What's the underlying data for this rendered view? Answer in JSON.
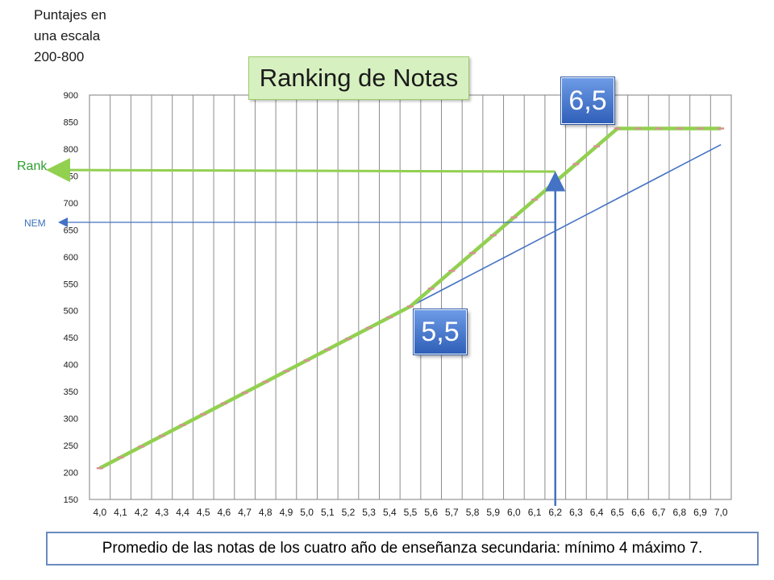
{
  "scale_note": [
    "Puntajes en",
    "una escala",
    "200-800"
  ],
  "title": "Ranking de Notas",
  "callout_high": "6,5",
  "callout_low": "5,5",
  "caption": "Promedio de las notas de los cuatro año de enseñanza secundaria: mínimo 4 máximo 7.",
  "rank_label": "Rank",
  "nem_label": "NEM",
  "chart_data": {
    "type": "line",
    "title": "Ranking de Notas",
    "xlabel": "Promedio de las notas de los cuatro año de enseñanza secundaria: mínimo 4 máximo 7.",
    "ylabel": "Puntajes en una escala 200-800",
    "x": [
      "4,0",
      "4,1",
      "4,2",
      "4,3",
      "4,4",
      "4,5",
      "4,6",
      "4,7",
      "4,8",
      "4,9",
      "5,0",
      "5,1",
      "5,2",
      "5,3",
      "5,4",
      "5,5",
      "5,6",
      "5,7",
      "5,8",
      "5,9",
      "6,0",
      "6,1",
      "6,2",
      "6,3",
      "6,4",
      "6,5",
      "6,6",
      "6,7",
      "6,8",
      "6,9",
      "7,0"
    ],
    "x_values": [
      4.0,
      4.1,
      4.2,
      4.3,
      4.4,
      4.5,
      4.6,
      4.7,
      4.8,
      4.9,
      5.0,
      5.1,
      5.2,
      5.3,
      5.4,
      5.5,
      5.6,
      5.7,
      5.8,
      5.9,
      6.0,
      6.1,
      6.2,
      6.3,
      6.4,
      6.5,
      6.6,
      6.7,
      6.8,
      6.9,
      7.0
    ],
    "ylim": [
      150,
      900
    ],
    "yticks": [
      150,
      200,
      250,
      300,
      350,
      400,
      450,
      500,
      550,
      600,
      650,
      700,
      750,
      800,
      850,
      900
    ],
    "series": [
      {
        "name": "NEM",
        "color": "#4472c4",
        "values": [
          208,
          228,
          248,
          268,
          288,
          308,
          328,
          348,
          368,
          388,
          408,
          428,
          448,
          468,
          488,
          508,
          528,
          548,
          568,
          588,
          608,
          628,
          648,
          668,
          688,
          708,
          728,
          748,
          768,
          788,
          808
        ]
      },
      {
        "name": "Rank",
        "color": "#92d050",
        "values": [
          208,
          228,
          248,
          268,
          288,
          308,
          328,
          348,
          368,
          388,
          408,
          428,
          448,
          468,
          488,
          508,
          541,
          574,
          607,
          640,
          673,
          706,
          739,
          772,
          805,
          838,
          838,
          838,
          838,
          838,
          838
        ]
      }
    ],
    "annotations": [
      {
        "label": "Rank",
        "x": 6.2,
        "y": 758,
        "color": "#92d050"
      },
      {
        "label": "NEM",
        "x": 6.2,
        "y": 664,
        "color": "#4472c4"
      }
    ],
    "grid": "vertical",
    "legend": "none"
  }
}
